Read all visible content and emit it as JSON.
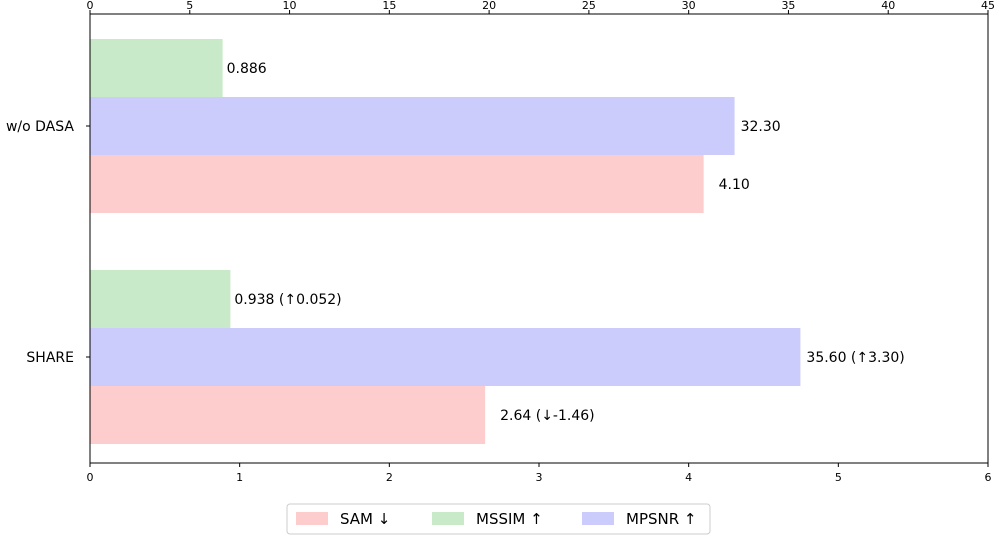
{
  "chart_data": {
    "type": "bar",
    "orientation": "horizontal",
    "categories": [
      "w/o DASA",
      "SHARE"
    ],
    "bottom_axis": {
      "range": [
        0,
        6
      ],
      "ticks": [
        "0",
        "1",
        "2",
        "3",
        "4",
        "5",
        "6"
      ]
    },
    "top_axis": {
      "range": [
        0,
        45
      ],
      "ticks": [
        "0",
        "5",
        "10",
        "15",
        "20",
        "25",
        "30",
        "35",
        "40",
        "45"
      ]
    },
    "series": [
      {
        "name": "MSSIM ↑",
        "axis": "bottom",
        "color": "#c8eac8",
        "values": [
          0.886,
          0.938
        ],
        "labels": [
          "0.886",
          "0.938 (↑0.052)"
        ]
      },
      {
        "name": "MPSNR ↑",
        "axis": "top",
        "color": "#ccccfc",
        "values": [
          32.3,
          35.6
        ],
        "labels": [
          "32.30",
          "35.60 (↑3.30)"
        ]
      },
      {
        "name": "SAM ↓",
        "axis": "bottom",
        "color": "#fdcccc",
        "values": [
          4.1,
          2.64
        ],
        "labels": [
          "4.10",
          "2.64 (↓-1.46)"
        ]
      }
    ],
    "legend": {
      "position": "bottom-center",
      "order": [
        "SAM ↓",
        "MSSIM ↑",
        "MPSNR ↑"
      ]
    }
  }
}
